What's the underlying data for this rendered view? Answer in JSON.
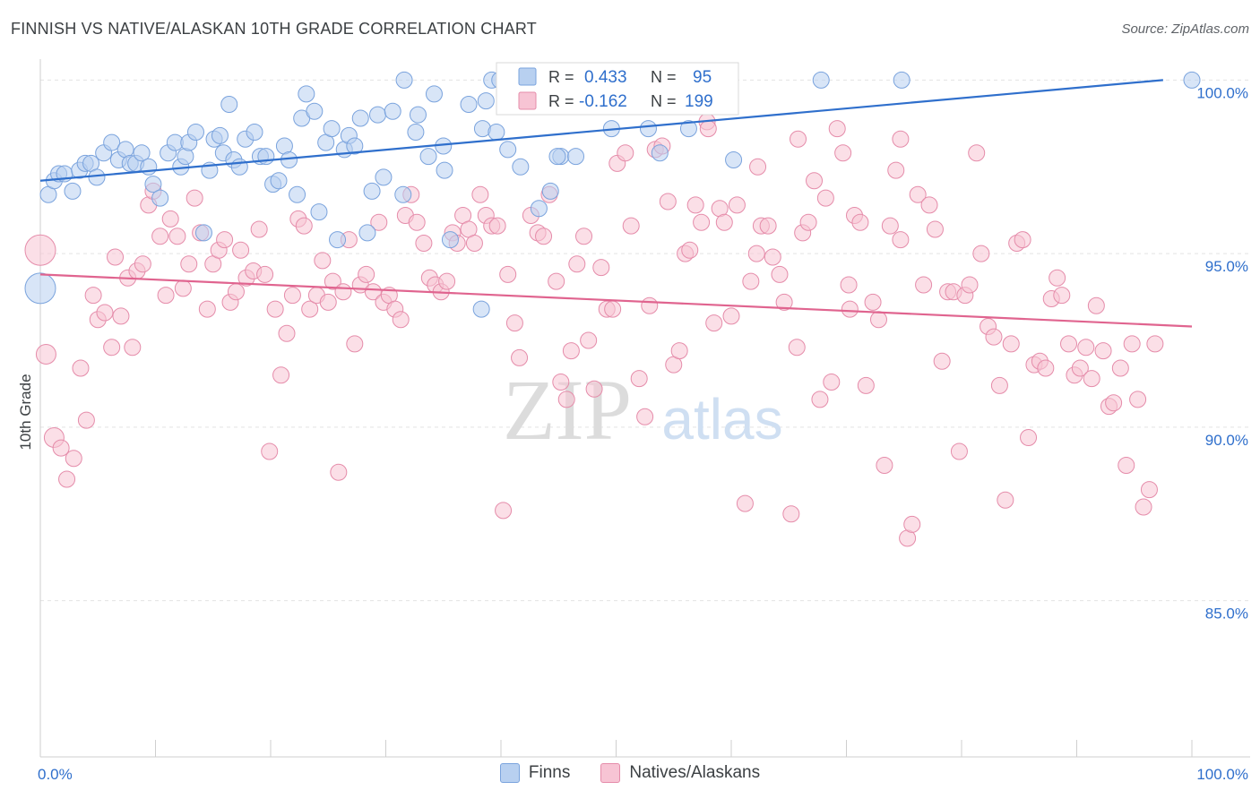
{
  "header": {
    "title": "FINNISH VS NATIVE/ALASKAN 10TH GRADE CORRELATION CHART",
    "source": "Source: ZipAtlas.com"
  },
  "colors": {
    "blue_fill": "#b8d0f0",
    "blue_stroke": "#7aa3dd",
    "blue_line": "#2f6fcc",
    "pink_fill": "#f7c4d4",
    "pink_stroke": "#e58caa",
    "pink_line": "#e0648f",
    "value_text": "#2f6fcc"
  },
  "legend_box": {
    "r_label": "R =",
    "n_label": "N =",
    "series": [
      {
        "r": "0.433",
        "n": "95"
      },
      {
        "r": "-0.162",
        "n": "199"
      }
    ]
  },
  "watermark": {
    "zip": "ZIP",
    "atlas": "atlas"
  },
  "chart_data": {
    "type": "scatter",
    "title": "FINNISH VS NATIVE/ALASKAN 10TH GRADE CORRELATION CHART",
    "xlabel": "",
    "ylabel": "10th Grade",
    "x_tick_labels": [
      "0.0%",
      "100.0%"
    ],
    "y_tick_labels": [
      "100.0%",
      "95.0%",
      "90.0%",
      "85.0%"
    ],
    "y_ticks": [
      100,
      95,
      90,
      85
    ],
    "xlim": [
      0,
      100
    ],
    "ylim": [
      80.5,
      100.5
    ],
    "grid": true,
    "legend_placement": "bottom",
    "series": [
      {
        "name": "Finns",
        "r": 0.433,
        "n": 95,
        "trend": [
          [
            0,
            97.1
          ],
          [
            97.5,
            100.0
          ]
        ],
        "points": [
          [
            0.7,
            96.7
          ],
          [
            1.2,
            97.1
          ],
          [
            1.6,
            97.3
          ],
          [
            2.1,
            97.3
          ],
          [
            2.8,
            96.8
          ],
          [
            3.4,
            97.4
          ],
          [
            3.9,
            97.6
          ],
          [
            4.4,
            97.6
          ],
          [
            4.9,
            97.2
          ],
          [
            5.5,
            97.9
          ],
          [
            6.2,
            98.2
          ],
          [
            6.8,
            97.7
          ],
          [
            7.4,
            98.0
          ],
          [
            7.8,
            97.6
          ],
          [
            8.3,
            97.6
          ],
          [
            8.8,
            97.9
          ],
          [
            9.4,
            97.5
          ],
          [
            9.8,
            97.0
          ],
          [
            10.4,
            96.6
          ],
          [
            11.1,
            97.9
          ],
          [
            11.7,
            98.2
          ],
          [
            12.2,
            97.5
          ],
          [
            12.6,
            97.8
          ],
          [
            12.9,
            98.2
          ],
          [
            13.5,
            98.5
          ],
          [
            14.2,
            95.6
          ],
          [
            14.7,
            97.4
          ],
          [
            15.1,
            98.3
          ],
          [
            15.6,
            98.4
          ],
          [
            15.9,
            97.9
          ],
          [
            16.4,
            99.3
          ],
          [
            16.8,
            97.7
          ],
          [
            17.3,
            97.5
          ],
          [
            17.8,
            98.3
          ],
          [
            18.6,
            98.5
          ],
          [
            19.1,
            97.8
          ],
          [
            19.6,
            97.8
          ],
          [
            20.2,
            97.0
          ],
          [
            20.7,
            97.1
          ],
          [
            21.2,
            98.1
          ],
          [
            21.6,
            97.7
          ],
          [
            22.3,
            96.7
          ],
          [
            22.7,
            98.9
          ],
          [
            23.1,
            99.6
          ],
          [
            23.8,
            99.1
          ],
          [
            24.2,
            96.2
          ],
          [
            24.8,
            98.2
          ],
          [
            25.3,
            98.6
          ],
          [
            25.8,
            95.4
          ],
          [
            26.4,
            98.0
          ],
          [
            26.8,
            98.4
          ],
          [
            27.3,
            98.1
          ],
          [
            27.8,
            98.9
          ],
          [
            28.4,
            95.6
          ],
          [
            28.8,
            96.8
          ],
          [
            29.3,
            99.0
          ],
          [
            29.8,
            97.2
          ],
          [
            30.6,
            99.1
          ],
          [
            31.5,
            96.7
          ],
          [
            31.6,
            100.0
          ],
          [
            32.6,
            98.5
          ],
          [
            32.8,
            99.0
          ],
          [
            33.7,
            97.8
          ],
          [
            34.2,
            99.6
          ],
          [
            35.0,
            98.1
          ],
          [
            35.1,
            97.4
          ],
          [
            35.6,
            95.4
          ],
          [
            37.2,
            99.3
          ],
          [
            38.3,
            93.4
          ],
          [
            38.4,
            98.6
          ],
          [
            38.7,
            99.4
          ],
          [
            39.2,
            100.0
          ],
          [
            39.9,
            100.0
          ],
          [
            39.6,
            98.5
          ],
          [
            40.6,
            98.0
          ],
          [
            41.7,
            97.5
          ],
          [
            43.3,
            96.3
          ],
          [
            44.3,
            96.8
          ],
          [
            45.2,
            97.8
          ],
          [
            46.5,
            97.8
          ],
          [
            44.9,
            97.8
          ],
          [
            49.6,
            98.6
          ],
          [
            52.8,
            98.6
          ],
          [
            51.7,
            100.0
          ],
          [
            53.8,
            97.9
          ],
          [
            56.3,
            98.6
          ],
          [
            56.7,
            100.0
          ],
          [
            57.8,
            100.0
          ],
          [
            60.2,
            97.7
          ],
          [
            67.8,
            100.0
          ],
          [
            74.8,
            100.0
          ],
          [
            100.0,
            100.0
          ],
          [
            0.0,
            94.0
          ],
          [
            44.6,
            100.0
          ],
          [
            47.3,
            100.0
          ]
        ]
      },
      {
        "name": "Natives/Alaskans",
        "r": -0.162,
        "n": 199,
        "trend": [
          [
            0,
            94.4
          ],
          [
            100,
            92.9
          ]
        ],
        "points": [
          [
            0.0,
            95.1
          ],
          [
            0.5,
            92.1
          ],
          [
            1.2,
            89.7
          ],
          [
            1.8,
            89.4
          ],
          [
            2.3,
            88.5
          ],
          [
            2.9,
            89.1
          ],
          [
            3.5,
            91.7
          ],
          [
            4.0,
            90.2
          ],
          [
            4.6,
            93.8
          ],
          [
            5.0,
            93.1
          ],
          [
            5.6,
            93.3
          ],
          [
            6.2,
            92.3
          ],
          [
            6.5,
            94.9
          ],
          [
            7.0,
            93.2
          ],
          [
            7.6,
            94.3
          ],
          [
            8.0,
            92.3
          ],
          [
            8.4,
            94.5
          ],
          [
            8.9,
            94.7
          ],
          [
            9.4,
            96.4
          ],
          [
            9.8,
            96.8
          ],
          [
            10.4,
            95.5
          ],
          [
            10.9,
            93.8
          ],
          [
            11.3,
            96.0
          ],
          [
            11.9,
            95.5
          ],
          [
            12.4,
            94.0
          ],
          [
            12.9,
            94.7
          ],
          [
            13.4,
            96.6
          ],
          [
            13.9,
            95.6
          ],
          [
            14.5,
            93.4
          ],
          [
            15.0,
            94.7
          ],
          [
            15.5,
            95.1
          ],
          [
            16.0,
            95.4
          ],
          [
            16.5,
            93.6
          ],
          [
            17.0,
            93.9
          ],
          [
            17.4,
            95.1
          ],
          [
            17.9,
            94.3
          ],
          [
            18.5,
            94.5
          ],
          [
            19.0,
            95.7
          ],
          [
            19.5,
            94.4
          ],
          [
            19.9,
            89.3
          ],
          [
            20.4,
            93.4
          ],
          [
            20.9,
            91.5
          ],
          [
            21.4,
            92.7
          ],
          [
            21.9,
            93.8
          ],
          [
            22.4,
            96.0
          ],
          [
            22.9,
            95.8
          ],
          [
            23.4,
            93.4
          ],
          [
            24.0,
            93.8
          ],
          [
            24.5,
            94.8
          ],
          [
            25.0,
            93.6
          ],
          [
            25.4,
            94.2
          ],
          [
            25.9,
            88.7
          ],
          [
            26.3,
            93.9
          ],
          [
            26.8,
            95.4
          ],
          [
            27.3,
            92.4
          ],
          [
            27.8,
            94.1
          ],
          [
            28.3,
            94.4
          ],
          [
            28.9,
            93.9
          ],
          [
            29.4,
            95.9
          ],
          [
            29.8,
            93.6
          ],
          [
            30.3,
            93.8
          ],
          [
            30.8,
            93.4
          ],
          [
            31.3,
            93.1
          ],
          [
            31.7,
            96.1
          ],
          [
            32.2,
            96.7
          ],
          [
            32.7,
            95.9
          ],
          [
            33.3,
            95.3
          ],
          [
            33.8,
            94.3
          ],
          [
            34.3,
            94.1
          ],
          [
            34.8,
            93.9
          ],
          [
            35.3,
            94.2
          ],
          [
            35.8,
            95.6
          ],
          [
            36.2,
            95.3
          ],
          [
            36.7,
            96.1
          ],
          [
            37.2,
            95.7
          ],
          [
            37.7,
            95.3
          ],
          [
            38.2,
            96.7
          ],
          [
            38.7,
            96.1
          ],
          [
            39.2,
            95.8
          ],
          [
            39.7,
            95.8
          ],
          [
            40.2,
            87.6
          ],
          [
            40.6,
            94.4
          ],
          [
            41.2,
            93.0
          ],
          [
            41.6,
            92.0
          ],
          [
            42.6,
            96.1
          ],
          [
            43.2,
            95.6
          ],
          [
            43.7,
            95.5
          ],
          [
            44.2,
            96.7
          ],
          [
            44.8,
            94.2
          ],
          [
            45.2,
            91.3
          ],
          [
            45.7,
            90.8
          ],
          [
            46.1,
            92.2
          ],
          [
            46.6,
            94.7
          ],
          [
            47.2,
            95.5
          ],
          [
            47.6,
            92.5
          ],
          [
            48.1,
            91.1
          ],
          [
            48.7,
            94.6
          ],
          [
            49.2,
            93.4
          ],
          [
            49.7,
            93.4
          ],
          [
            50.1,
            97.6
          ],
          [
            50.8,
            97.9
          ],
          [
            51.3,
            95.8
          ],
          [
            52.0,
            91.4
          ],
          [
            52.5,
            90.3
          ],
          [
            52.9,
            93.5
          ],
          [
            53.4,
            98.0
          ],
          [
            54.0,
            98.1
          ],
          [
            54.5,
            96.5
          ],
          [
            55.0,
            91.8
          ],
          [
            55.5,
            92.2
          ],
          [
            56.0,
            95.0
          ],
          [
            56.4,
            95.1
          ],
          [
            56.9,
            96.4
          ],
          [
            57.4,
            95.9
          ],
          [
            57.9,
            98.8
          ],
          [
            58.5,
            93.0
          ],
          [
            59.0,
            96.3
          ],
          [
            59.4,
            95.9
          ],
          [
            60.0,
            93.2
          ],
          [
            60.5,
            96.4
          ],
          [
            61.2,
            87.8
          ],
          [
            61.7,
            94.2
          ],
          [
            62.2,
            95.0
          ],
          [
            62.6,
            95.8
          ],
          [
            63.2,
            95.8
          ],
          [
            63.6,
            94.9
          ],
          [
            64.2,
            94.4
          ],
          [
            64.6,
            93.6
          ],
          [
            65.2,
            87.5
          ],
          [
            65.7,
            92.3
          ],
          [
            66.2,
            95.6
          ],
          [
            66.7,
            95.9
          ],
          [
            67.2,
            97.1
          ],
          [
            67.7,
            90.8
          ],
          [
            68.2,
            96.6
          ],
          [
            68.7,
            91.3
          ],
          [
            69.2,
            98.6
          ],
          [
            69.7,
            97.9
          ],
          [
            70.2,
            94.1
          ],
          [
            70.7,
            96.1
          ],
          [
            71.2,
            95.9
          ],
          [
            71.7,
            91.2
          ],
          [
            72.3,
            93.6
          ],
          [
            72.8,
            93.1
          ],
          [
            73.3,
            88.9
          ],
          [
            73.8,
            95.8
          ],
          [
            74.3,
            97.4
          ],
          [
            74.7,
            95.4
          ],
          [
            75.3,
            86.8
          ],
          [
            75.7,
            87.2
          ],
          [
            76.2,
            96.7
          ],
          [
            76.7,
            94.1
          ],
          [
            77.2,
            96.4
          ],
          [
            77.7,
            95.7
          ],
          [
            78.3,
            91.9
          ],
          [
            78.8,
            93.9
          ],
          [
            79.3,
            93.9
          ],
          [
            79.8,
            89.3
          ],
          [
            80.3,
            93.8
          ],
          [
            80.7,
            94.1
          ],
          [
            81.3,
            97.9
          ],
          [
            81.7,
            95.0
          ],
          [
            82.3,
            92.9
          ],
          [
            82.8,
            92.6
          ],
          [
            83.3,
            91.2
          ],
          [
            83.8,
            87.9
          ],
          [
            84.3,
            92.4
          ],
          [
            84.8,
            95.3
          ],
          [
            85.3,
            95.4
          ],
          [
            85.8,
            89.7
          ],
          [
            86.3,
            91.8
          ],
          [
            86.8,
            91.9
          ],
          [
            87.3,
            91.7
          ],
          [
            87.8,
            93.7
          ],
          [
            88.3,
            94.3
          ],
          [
            88.7,
            93.8
          ],
          [
            89.3,
            92.4
          ],
          [
            89.8,
            91.5
          ],
          [
            90.3,
            91.7
          ],
          [
            90.8,
            92.3
          ],
          [
            91.3,
            91.4
          ],
          [
            91.7,
            93.5
          ],
          [
            92.3,
            92.2
          ],
          [
            92.8,
            90.6
          ],
          [
            93.2,
            90.7
          ],
          [
            93.8,
            91.7
          ],
          [
            94.3,
            88.9
          ],
          [
            94.8,
            92.4
          ],
          [
            95.3,
            90.8
          ],
          [
            95.8,
            87.7
          ],
          [
            96.3,
            88.2
          ],
          [
            96.8,
            92.4
          ],
          [
            58.0,
            98.6
          ],
          [
            62.3,
            97.5
          ],
          [
            65.8,
            98.3
          ],
          [
            70.3,
            93.4
          ],
          [
            74.7,
            98.3
          ]
        ]
      }
    ]
  }
}
